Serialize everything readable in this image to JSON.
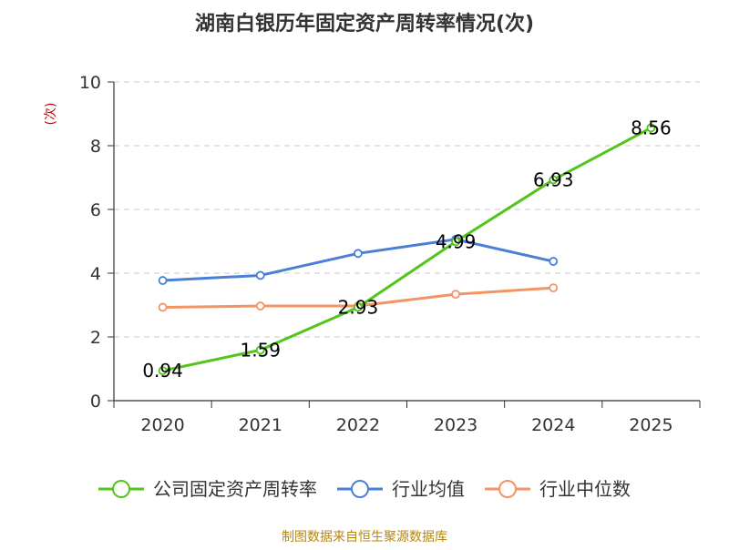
{
  "chart_data": {
    "type": "line",
    "title": "湖南白银历年固定资产周转率情况(次)",
    "ylabel": "(次)",
    "xlabel": "",
    "categories": [
      "2020",
      "2021",
      "2022",
      "2023",
      "2024",
      "2025"
    ],
    "ylim": [
      0,
      10
    ],
    "yticks": [
      0,
      2,
      4,
      6,
      8,
      10
    ],
    "grid": true,
    "legend_position": "bottom",
    "series": [
      {
        "name": "公司固定资产周转率",
        "color": "#52c41a",
        "values": [
          0.94,
          1.59,
          2.93,
          4.99,
          6.93,
          8.56
        ],
        "data_labels": [
          "0.94",
          "1.59",
          "2.93",
          "4.99",
          "6.93",
          "8.56"
        ]
      },
      {
        "name": "行业均值",
        "color": "#4a7fd8",
        "values": [
          3.77,
          3.93,
          4.62,
          5.06,
          4.37,
          null
        ]
      },
      {
        "name": "行业中位数",
        "color": "#f59363",
        "values": [
          2.93,
          2.97,
          2.97,
          3.34,
          3.54,
          null
        ]
      }
    ]
  },
  "footer": {
    "source": "制图数据来自恒生聚源数据库"
  }
}
